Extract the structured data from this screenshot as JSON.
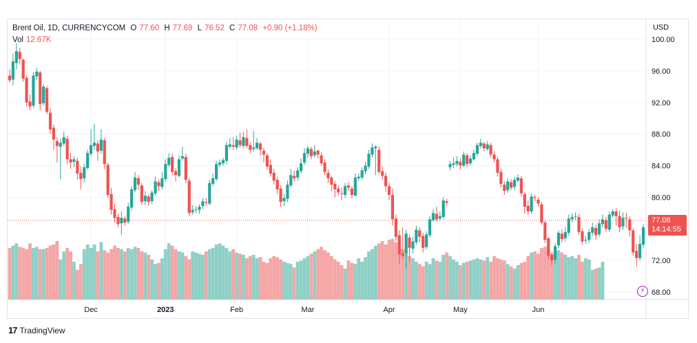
{
  "legend": {
    "symbol": "Brent Oil, 1D, CURRENCYCOM",
    "open_label": "O",
    "open": "77.60",
    "high_label": "H",
    "high": "77.69",
    "low_label": "L",
    "low": "76.52",
    "close_label": "C",
    "close": "77.08",
    "change": "+0.90 (+1.18%)",
    "vol_label": "Vol",
    "vol": "12.67K"
  },
  "axis": {
    "currency": "USD"
  },
  "last_price": {
    "price": "77.08",
    "countdown": "14:14:55"
  },
  "footer": {
    "brand": "TradingView",
    "logo_icon": "tradingview-logo-icon"
  },
  "icons": {
    "lightning": "lightning-icon"
  },
  "colors": {
    "up": "#26a69a",
    "down": "#ef5350",
    "up_vol": "#8fd0c6",
    "down_vol": "#f4a6a5"
  },
  "chart_data": {
    "type": "candlestick",
    "y_ticks": [
      "100.00",
      "96.00",
      "92.00",
      "88.00",
      "84.00",
      "80.00",
      "72.00",
      "68.00"
    ],
    "ylim": [
      67,
      101
    ],
    "x_ticks": [
      {
        "label": "Dec",
        "index": 24
      },
      {
        "label": "2023",
        "index": 46
      },
      {
        "label": "Feb",
        "index": 67
      },
      {
        "label": "Mar",
        "index": 88
      },
      {
        "label": "Apr",
        "index": 112
      },
      {
        "label": "May",
        "index": 133
      },
      {
        "label": "Jun",
        "index": 156
      }
    ],
    "last_close": 77.08,
    "grid": true,
    "candles": [
      [
        95.4,
        94.8,
        96.2,
        94.5
      ],
      [
        94.9,
        97.2,
        98.2,
        94.2
      ],
      [
        97.0,
        98.5,
        99.5,
        96.2
      ],
      [
        98.4,
        97.5,
        98.9,
        96.8
      ],
      [
        97.4,
        95.0,
        97.6,
        94.6
      ],
      [
        95.1,
        92.0,
        95.4,
        91.5
      ],
      [
        92.1,
        91.5,
        93.0,
        91.0
      ],
      [
        91.6,
        95.4,
        95.8,
        91.3
      ],
      [
        95.3,
        95.9,
        96.4,
        94.8
      ],
      [
        95.8,
        91.8,
        96.0,
        91.0
      ],
      [
        91.9,
        94.0,
        94.3,
        91.6
      ],
      [
        93.8,
        90.8,
        94.1,
        90.5
      ],
      [
        90.7,
        88.6,
        91.3,
        88.0
      ],
      [
        88.8,
        87.3,
        89.2,
        86.0
      ],
      [
        87.1,
        86.5,
        87.6,
        84.4
      ],
      [
        86.4,
        86.9,
        87.4,
        82.3
      ],
      [
        86.8,
        87.6,
        88.3,
        86.5
      ],
      [
        87.4,
        84.8,
        87.8,
        84.2
      ],
      [
        84.8,
        84.4,
        85.6,
        83.6
      ],
      [
        84.5,
        84.8,
        85.2,
        83.8
      ],
      [
        84.6,
        83.0,
        85.0,
        82.2
      ],
      [
        83.1,
        82.3,
        83.9,
        81.0
      ],
      [
        82.4,
        83.8,
        84.2,
        81.9
      ],
      [
        83.7,
        85.6,
        86.0,
        83.5
      ],
      [
        85.5,
        86.6,
        88.6,
        85.2
      ],
      [
        86.5,
        86.9,
        89.3,
        86.0
      ],
      [
        86.8,
        85.8,
        87.2,
        84.6
      ],
      [
        85.9,
        87.3,
        88.6,
        85.5
      ],
      [
        87.2,
        84.2,
        87.5,
        83.6
      ],
      [
        84.1,
        80.3,
        84.4,
        80.0
      ],
      [
        80.4,
        78.4,
        81.2,
        77.8
      ],
      [
        78.5,
        77.4,
        79.2,
        76.8
      ],
      [
        77.5,
        76.6,
        77.9,
        76.2
      ],
      [
        76.7,
        77.4,
        78.2,
        75.2
      ],
      [
        77.3,
        76.8,
        77.6,
        76.4
      ],
      [
        76.9,
        78.8,
        79.3,
        76.6
      ],
      [
        78.7,
        81.0,
        81.4,
        78.3
      ],
      [
        80.9,
        82.5,
        83.2,
        80.6
      ],
      [
        82.4,
        81.6,
        82.8,
        80.9
      ],
      [
        81.5,
        79.4,
        81.8,
        79.0
      ],
      [
        79.5,
        80.2,
        80.8,
        79.0
      ],
      [
        80.1,
        79.4,
        80.4,
        78.9
      ],
      [
        79.5,
        80.6,
        80.9,
        79.1
      ],
      [
        80.5,
        82.0,
        82.6,
        80.2
      ],
      [
        81.9,
        81.4,
        82.2,
        80.8
      ],
      [
        81.3,
        82.4,
        83.2,
        81.0
      ],
      [
        82.3,
        84.2,
        84.8,
        82.0
      ],
      [
        84.1,
        85.0,
        85.6,
        83.8
      ],
      [
        85.1,
        83.2,
        85.5,
        82.8
      ],
      [
        83.3,
        82.8,
        83.7,
        82.0
      ],
      [
        82.7,
        84.8,
        85.3,
        82.5
      ],
      [
        84.9,
        85.2,
        86.4,
        84.6
      ],
      [
        85.1,
        82.2,
        85.5,
        81.8
      ],
      [
        82.1,
        78.0,
        82.5,
        77.6
      ],
      [
        78.1,
        78.4,
        79.0,
        77.8
      ],
      [
        78.5,
        78.5,
        78.9,
        78.0
      ],
      [
        78.4,
        78.8,
        79.1,
        77.9
      ],
      [
        78.9,
        79.5,
        79.9,
        78.5
      ],
      [
        79.4,
        79.3,
        79.9,
        78.9
      ],
      [
        79.2,
        81.8,
        82.2,
        79.0
      ],
      [
        81.7,
        82.4,
        83.0,
        81.4
      ],
      [
        82.3,
        84.2,
        84.6,
        82.0
      ],
      [
        84.1,
        84.4,
        84.8,
        83.8
      ],
      [
        84.3,
        84.7,
        85.0,
        84.0
      ],
      [
        84.6,
        86.6,
        87.0,
        84.2
      ],
      [
        86.4,
        86.7,
        87.5,
        86.2
      ],
      [
        86.6,
        86.4,
        87.6,
        86.0
      ],
      [
        86.3,
        87.3,
        87.8,
        86.0
      ],
      [
        87.2,
        86.6,
        88.2,
        86.3
      ],
      [
        86.5,
        87.6,
        88.3,
        86.2
      ],
      [
        87.5,
        86.5,
        88.6,
        86.2
      ],
      [
        86.6,
        86.0,
        87.0,
        85.6
      ],
      [
        86.1,
        86.3,
        88.4,
        85.8
      ],
      [
        86.2,
        86.9,
        87.5,
        86.0
      ],
      [
        86.8,
        86.0,
        87.0,
        85.3
      ],
      [
        85.9,
        85.4,
        86.3,
        84.4
      ],
      [
        85.3,
        83.9,
        85.6,
        83.5
      ],
      [
        84.1,
        83.0,
        84.8,
        82.6
      ],
      [
        83.1,
        82.1,
        83.6,
        81.6
      ],
      [
        82.2,
        81.0,
        82.6,
        80.4
      ],
      [
        81.1,
        79.4,
        81.5,
        78.8
      ],
      [
        79.5,
        79.9,
        80.4,
        78.9
      ],
      [
        79.8,
        81.6,
        82.1,
        79.4
      ],
      [
        81.5,
        82.8,
        83.6,
        81.2
      ],
      [
        82.7,
        82.4,
        83.4,
        82.0
      ],
      [
        82.5,
        83.4,
        83.8,
        82.1
      ],
      [
        83.3,
        84.3,
        84.9,
        83.0
      ],
      [
        84.4,
        85.6,
        86.2,
        84.1
      ],
      [
        85.5,
        86.2,
        86.5,
        85.0
      ],
      [
        86.1,
        85.2,
        86.4,
        84.8
      ],
      [
        85.3,
        85.8,
        86.6,
        85.0
      ],
      [
        85.9,
        85.4,
        86.0,
        84.9
      ],
      [
        85.3,
        84.3,
        85.7,
        84.0
      ],
      [
        84.4,
        83.2,
        84.8,
        82.8
      ],
      [
        83.1,
        82.4,
        83.5,
        81.8
      ],
      [
        82.5,
        81.6,
        82.7,
        80.8
      ],
      [
        81.7,
        81.0,
        82.1,
        80.0
      ],
      [
        81.1,
        80.6,
        81.5,
        80.2
      ],
      [
        80.5,
        80.4,
        81.2,
        79.6
      ],
      [
        80.3,
        81.4,
        81.8,
        79.9
      ],
      [
        81.5,
        81.2,
        81.9,
        80.8
      ],
      [
        81.1,
        80.3,
        81.4,
        79.9
      ],
      [
        80.2,
        82.5,
        83.0,
        80.1
      ],
      [
        82.4,
        82.6,
        83.0,
        82.1
      ],
      [
        82.5,
        83.4,
        83.8,
        82.2
      ],
      [
        83.3,
        84.0,
        84.5,
        82.9
      ],
      [
        83.9,
        85.5,
        86.0,
        83.6
      ],
      [
        85.4,
        86.3,
        86.8,
        85.0
      ],
      [
        86.2,
        86.4,
        86.6,
        82.8
      ],
      [
        86.0,
        83.2,
        86.4,
        82.9
      ],
      [
        83.3,
        82.7,
        83.9,
        82.2
      ],
      [
        82.7,
        81.4,
        83.1,
        80.7
      ],
      [
        81.4,
        80.3,
        81.8,
        79.6
      ],
      [
        80.3,
        77.2,
        81.1,
        76.4
      ],
      [
        77.3,
        75.0,
        77.8,
        74.5
      ],
      [
        75.2,
        72.8,
        75.8,
        71.5
      ],
      [
        72.9,
        72.6,
        76.2,
        72.2
      ],
      [
        72.9,
        75.4,
        75.9,
        71.0
      ],
      [
        74.9,
        73.6,
        75.3,
        71.8
      ],
      [
        73.5,
        74.4,
        75.0,
        72.9
      ],
      [
        74.3,
        75.9,
        76.4,
        74.0
      ],
      [
        75.8,
        75.0,
        76.2,
        74.3
      ],
      [
        75.1,
        73.6,
        75.5,
        73.0
      ],
      [
        73.7,
        75.3,
        75.7,
        73.4
      ],
      [
        75.2,
        77.2,
        77.6,
        74.9
      ],
      [
        77.1,
        78.0,
        78.5,
        76.9
      ],
      [
        77.9,
        77.2,
        78.8,
        76.9
      ],
      [
        77.3,
        77.6,
        78.2,
        77.0
      ],
      [
        77.5,
        79.6,
        80.0,
        77.2
      ],
      [
        79.5,
        79.3,
        79.8,
        78.9
      ],
      [
        83.8,
        84.2,
        84.6,
        83.4
      ],
      [
        84.1,
        84.3,
        85.0,
        83.7
      ],
      [
        84.2,
        84.6,
        85.2,
        83.9
      ],
      [
        84.5,
        84.0,
        84.9,
        83.5
      ],
      [
        84.0,
        85.4,
        85.8,
        83.8
      ],
      [
        85.3,
        84.2,
        85.6,
        83.8
      ],
      [
        84.3,
        84.9,
        85.3,
        84.0
      ],
      [
        84.8,
        85.6,
        86.0,
        84.6
      ],
      [
        85.5,
        86.6,
        86.9,
        85.2
      ],
      [
        86.5,
        86.9,
        87.4,
        86.2
      ],
      [
        86.8,
        86.2,
        87.0,
        85.8
      ],
      [
        86.1,
        86.7,
        87.1,
        85.9
      ],
      [
        86.6,
        85.4,
        86.9,
        85.0
      ],
      [
        85.4,
        84.8,
        85.8,
        84.4
      ],
      [
        84.8,
        83.1,
        85.1,
        82.6
      ],
      [
        83.2,
        81.7,
        83.6,
        81.2
      ],
      [
        81.6,
        80.8,
        82.0,
        80.3
      ],
      [
        80.9,
        82.0,
        82.4,
        80.6
      ],
      [
        81.9,
        81.2,
        82.3,
        80.9
      ],
      [
        81.3,
        82.2,
        82.6,
        80.9
      ],
      [
        82.1,
        82.5,
        82.9,
        81.9
      ],
      [
        82.4,
        80.5,
        82.7,
        80.1
      ],
      [
        80.4,
        78.8,
        80.6,
        77.9
      ],
      [
        78.9,
        78.2,
        79.6,
        77.8
      ],
      [
        78.2,
        80.1,
        80.5,
        77.9
      ],
      [
        80.0,
        79.9,
        80.3,
        79.5
      ],
      [
        79.7,
        79.2,
        80.0,
        78.8
      ],
      [
        79.1,
        76.8,
        79.4,
        76.5
      ],
      [
        76.8,
        74.6,
        77.1,
        74.2
      ],
      [
        74.8,
        72.6,
        75.0,
        72.2
      ],
      [
        72.7,
        72.0,
        73.1,
        71.4
      ],
      [
        72.1,
        73.8,
        74.2,
        71.6
      ],
      [
        73.9,
        75.5,
        75.8,
        73.5
      ],
      [
        75.4,
        74.7,
        75.9,
        74.3
      ],
      [
        74.8,
        75.6,
        76.2,
        74.4
      ],
      [
        75.5,
        77.3,
        77.8,
        75.1
      ],
      [
        77.2,
        77.5,
        78.0,
        76.8
      ],
      [
        77.6,
        77.6,
        78.1,
        77.1
      ],
      [
        77.5,
        75.6,
        77.9,
        75.2
      ],
      [
        75.7,
        74.4,
        76.0,
        74.0
      ],
      [
        74.5,
        74.6,
        75.1,
        74.1
      ],
      [
        74.6,
        75.6,
        76.0,
        74.2
      ],
      [
        75.5,
        76.2,
        76.8,
        75.1
      ],
      [
        76.1,
        75.2,
        76.5,
        74.6
      ],
      [
        75.3,
        76.7,
        77.2,
        75.0
      ],
      [
        76.6,
        77.2,
        77.8,
        76.2
      ],
      [
        77.1,
        76.0,
        77.5,
        75.6
      ],
      [
        75.9,
        77.8,
        78.2,
        75.6
      ],
      [
        77.7,
        78.2,
        78.5,
        77.4
      ],
      [
        78.2,
        77.6,
        78.6,
        76.4
      ],
      [
        77.6,
        76.2,
        78.3,
        75.6
      ],
      [
        76.3,
        77.4,
        78.1,
        75.9
      ],
      [
        77.4,
        77.3,
        78.0,
        76.1
      ],
      [
        77.2,
        75.8,
        77.6,
        75.0
      ],
      [
        75.8,
        73.0,
        76.1,
        72.6
      ],
      [
        73.2,
        72.3,
        74.1,
        71.2
      ],
      [
        72.3,
        74.1,
        75.2,
        72.0
      ],
      [
        74.0,
        76.2,
        76.6,
        73.6
      ]
    ],
    "volumes": [
      45,
      47,
      49,
      46,
      45,
      44,
      49,
      45,
      46,
      44,
      44,
      45,
      47,
      48,
      51,
      35,
      42,
      45,
      42,
      33,
      26,
      31,
      44,
      48,
      45,
      48,
      42,
      50,
      43,
      41,
      44,
      47,
      45,
      44,
      42,
      45,
      44,
      46,
      45,
      42,
      41,
      39,
      35,
      31,
      32,
      36,
      44,
      49,
      47,
      44,
      42,
      41,
      38,
      35,
      42,
      41,
      40,
      39,
      42,
      44,
      45,
      48,
      49,
      47,
      45,
      42,
      44,
      41,
      40,
      39,
      36,
      38,
      39,
      36,
      37,
      33,
      32,
      36,
      38,
      37,
      35,
      33,
      32,
      31,
      28,
      33,
      34,
      36,
      38,
      40,
      42,
      44,
      46,
      43,
      41,
      38,
      35,
      33,
      30,
      27,
      34,
      32,
      31,
      36,
      33,
      37,
      42,
      44,
      47,
      49,
      51,
      48,
      52,
      53,
      50,
      46,
      44,
      41,
      38,
      36,
      33,
      31,
      29,
      33,
      31,
      36,
      34,
      33,
      39,
      41,
      38,
      35,
      33,
      30,
      32,
      33,
      34,
      35,
      36,
      35,
      34,
      37,
      33,
      38,
      36,
      35,
      34,
      31,
      29,
      27,
      30,
      32,
      33,
      38,
      41,
      42,
      40,
      45,
      46,
      44,
      40,
      42,
      43,
      41,
      39,
      37,
      38,
      36,
      39,
      33,
      36,
      35,
      26,
      27,
      28,
      33
    ]
  }
}
